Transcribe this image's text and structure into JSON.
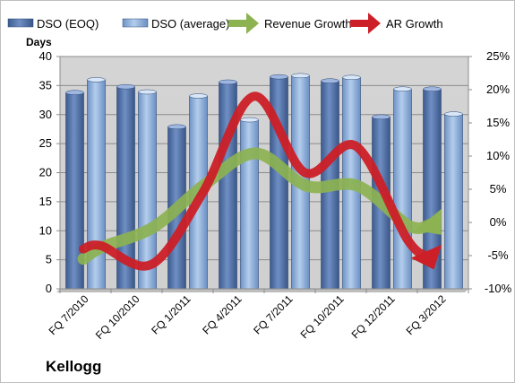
{
  "chart_data": {
    "type": "bar",
    "title": "",
    "company": "Kellogg",
    "y_left_label": "Days",
    "y_left_lim": [
      0,
      40
    ],
    "y_left_ticks": [
      "0",
      "5",
      "10",
      "15",
      "20",
      "25",
      "30",
      "35",
      "40"
    ],
    "y_right_lim": [
      -10,
      25
    ],
    "y_right_ticks": [
      "-10%",
      "-5%",
      "0%",
      "5%",
      "10%",
      "15%",
      "20%",
      "25%"
    ],
    "categories": [
      "FQ 7/2010",
      "FQ 10/2010",
      "FQ 1/2011",
      "FQ 4/2011",
      "FQ 7/2011",
      "FQ 10/2011",
      "FQ 12/2011",
      "FQ 3/2012"
    ],
    "grid": true,
    "legend": "top",
    "series": [
      {
        "name": "DSO (EOQ)",
        "kind": "bar",
        "axis": "left",
        "color": "#4f6fa8",
        "values": [
          33.8,
          34.8,
          27.9,
          35.6,
          36.5,
          35.8,
          29.6,
          34.4
        ]
      },
      {
        "name": "DSO (average)",
        "kind": "bar",
        "axis": "left",
        "color": "#8eb4e3",
        "values": [
          36.0,
          33.9,
          33.2,
          29.1,
          36.7,
          36.4,
          34.4,
          30.1
        ]
      },
      {
        "name": "Revenue Growth",
        "kind": "arrow-line",
        "axis": "right",
        "color": "#8cb251",
        "values": [
          -5.5,
          -3.7,
          -0.7,
          5.7,
          10.4,
          5.5,
          5.5,
          -0.5
        ]
      },
      {
        "name": "AR Growth",
        "kind": "arrow-line",
        "axis": "right",
        "color": "#cc1f27",
        "values": [
          -4.0,
          -3.5,
          -6.3,
          4.5,
          19.0,
          7.5,
          11.5,
          -2.5
        ]
      }
    ]
  }
}
